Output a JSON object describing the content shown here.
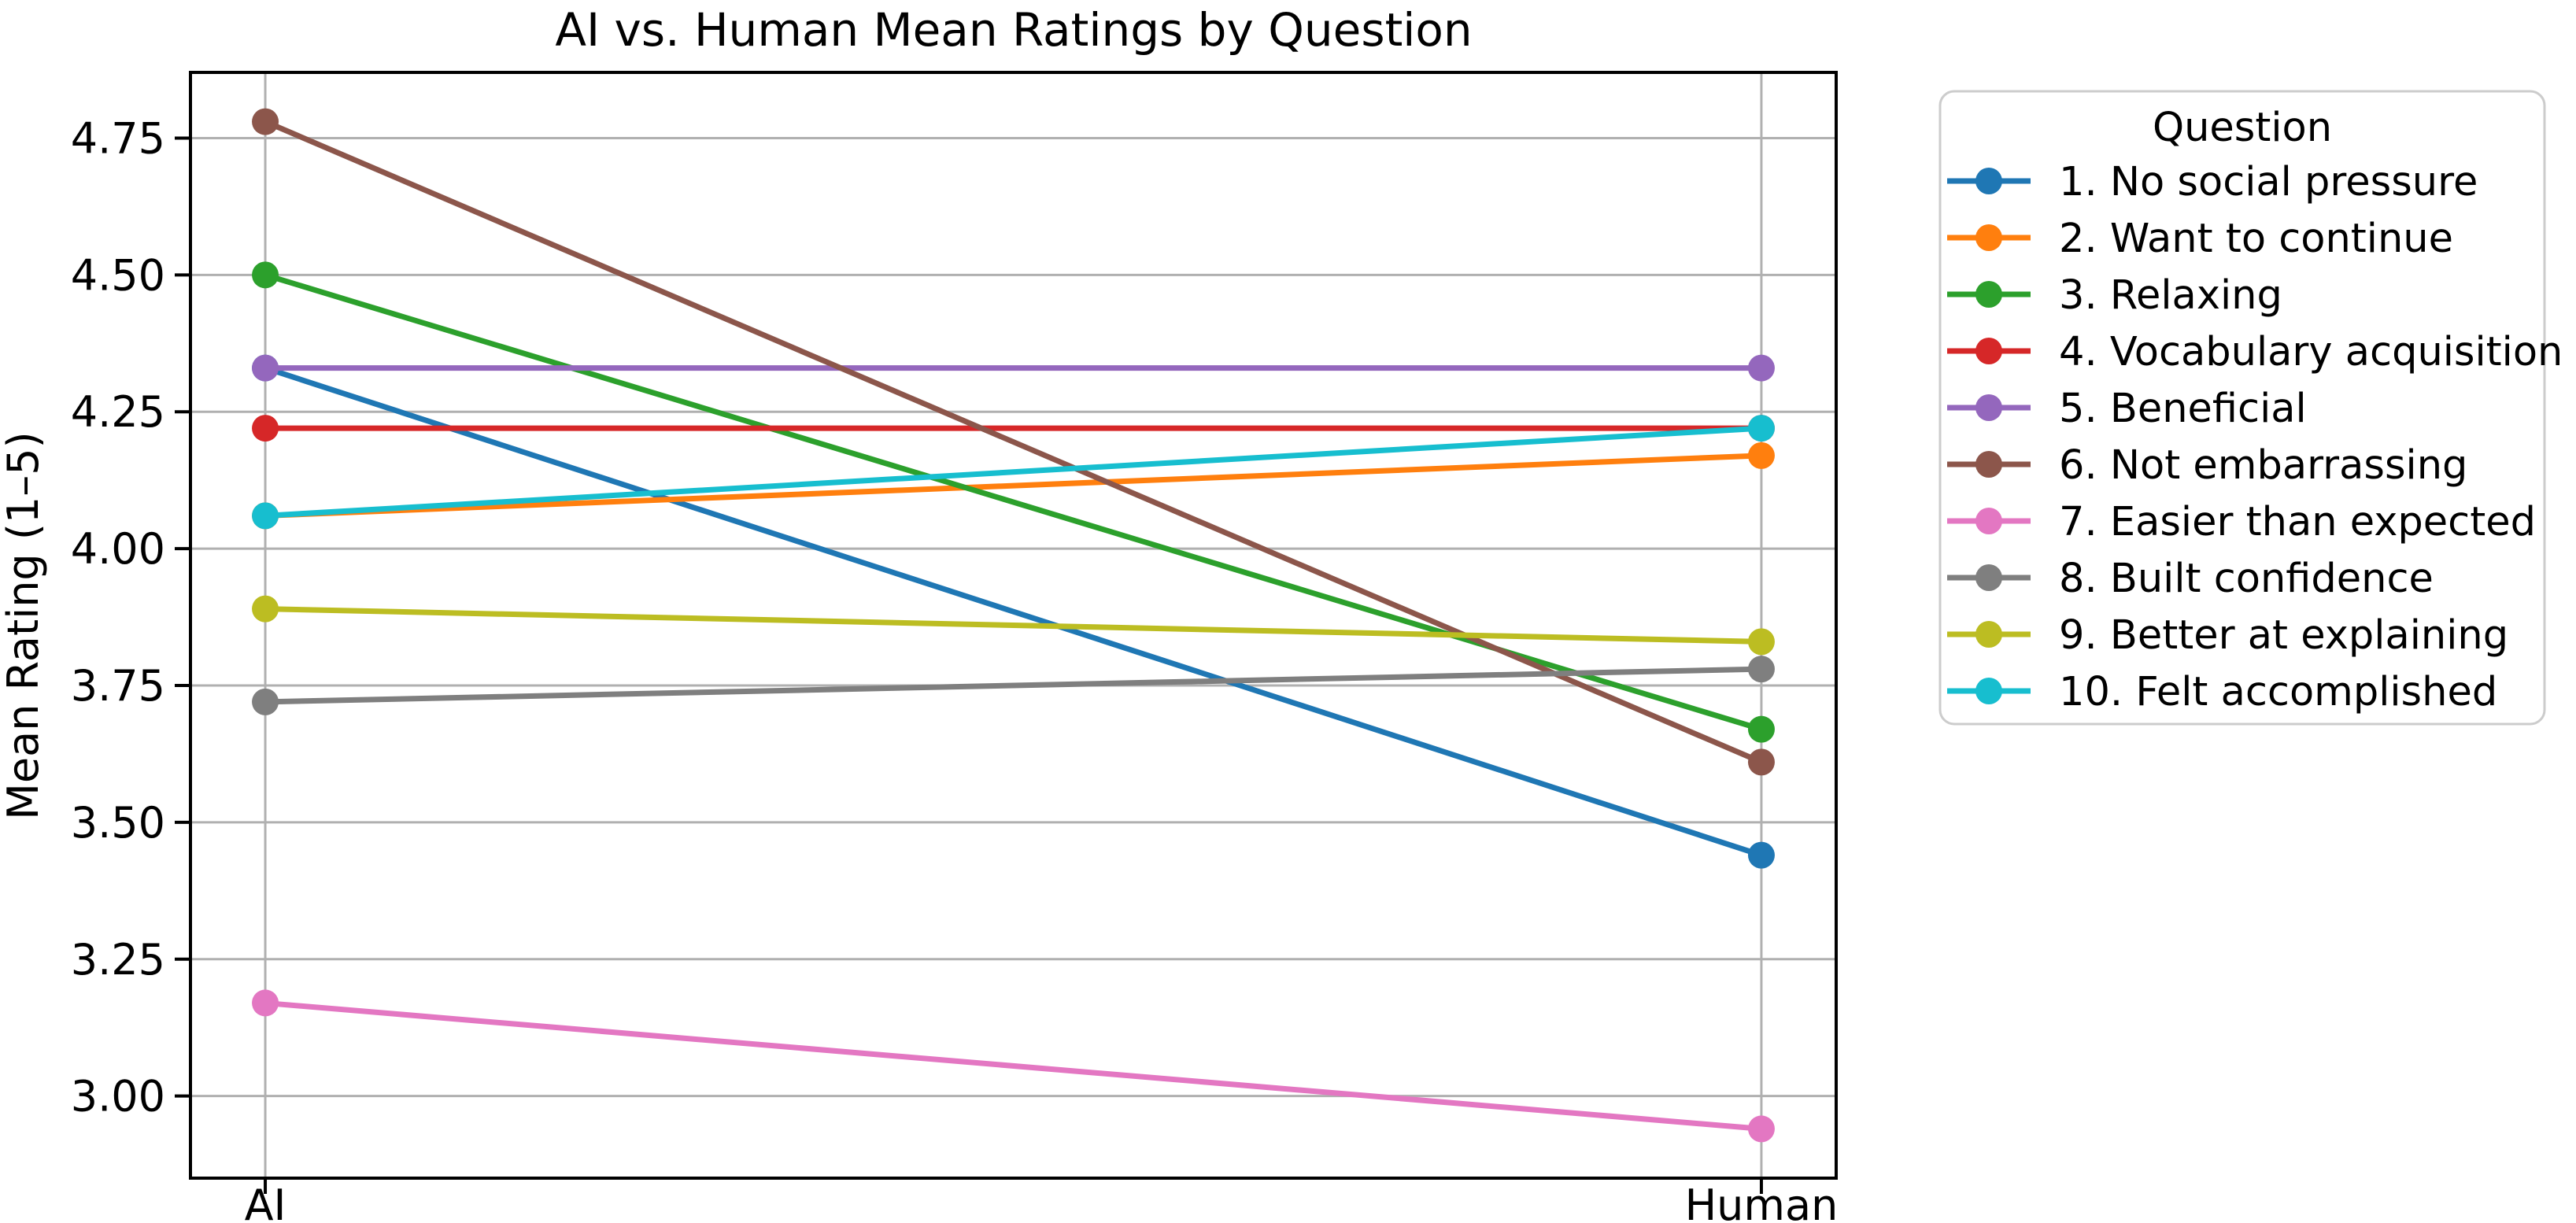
{
  "title": "AI vs. Human Mean Ratings by Question",
  "ylabel": "Mean Rating (1–5)",
  "legend": {
    "title": "Question",
    "position": "outside-right"
  },
  "chart_data": {
    "type": "line",
    "title": "AI vs. Human Mean Ratings by Question",
    "xlabel": "",
    "ylabel": "Mean Rating (1–5)",
    "categories": [
      "AI",
      "Human"
    ],
    "series": [
      {
        "name": "1. No social pressure",
        "color": "#1f77b4",
        "values": [
          4.33,
          3.44
        ]
      },
      {
        "name": "2. Want to continue",
        "color": "#ff7f0e",
        "values": [
          4.06,
          4.17
        ]
      },
      {
        "name": "3. Relaxing",
        "color": "#2ca02c",
        "values": [
          4.5,
          3.67
        ]
      },
      {
        "name": "4. Vocabulary acquisition",
        "color": "#d62728",
        "values": [
          4.22,
          4.22
        ]
      },
      {
        "name": "5. Beneficial",
        "color": "#9467bd",
        "values": [
          4.33,
          4.33
        ]
      },
      {
        "name": "6. Not embarrassing",
        "color": "#8c564b",
        "values": [
          4.78,
          3.61
        ]
      },
      {
        "name": "7. Easier than expected",
        "color": "#e377c2",
        "values": [
          3.17,
          2.94
        ]
      },
      {
        "name": "8. Built confidence",
        "color": "#7f7f7f",
        "values": [
          3.72,
          3.78
        ]
      },
      {
        "name": "9. Better at explaining",
        "color": "#bcbd22",
        "values": [
          3.89,
          3.83
        ]
      },
      {
        "name": "10. Felt accomplished",
        "color": "#17becf",
        "values": [
          4.06,
          4.22
        ]
      }
    ],
    "ylim": [
      2.85,
      4.87
    ],
    "yticks": [
      3.0,
      3.25,
      3.5,
      3.75,
      4.0,
      4.25,
      4.5,
      4.75
    ],
    "ytick_labels": [
      "3.00",
      "3.25",
      "3.50",
      "3.75",
      "4.00",
      "4.25",
      "4.50",
      "4.75"
    ],
    "grid": true,
    "marker": "o",
    "legend_title": "Question",
    "legend_position": "outside right",
    "grid_color": "#b0b0b0",
    "spine_color": "#000000",
    "legend_border_color": "#cccccc"
  }
}
